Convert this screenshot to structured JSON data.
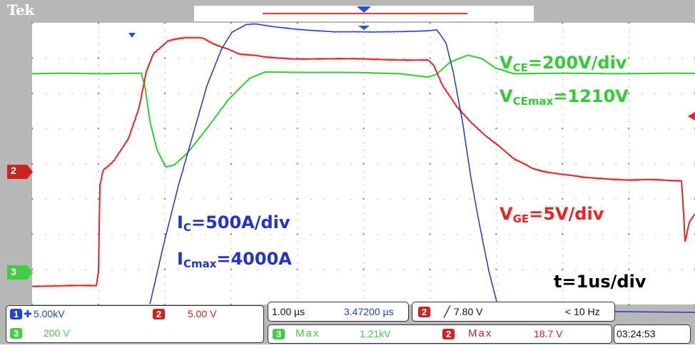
{
  "brand": "Tek",
  "labels": {
    "vce_main": "V",
    "vce_sub": "CE",
    "vce_val": "=200V/div",
    "vcemax_main": "V",
    "vcemax_sub": "CEmax",
    "vcemax_val": "=1210V",
    "vge_main": "V",
    "vge_sub": "GE",
    "vge_val": "=5V/div",
    "ic_main": "I",
    "ic_sub": "C",
    "ic_val": "=500A/div",
    "icmax_main": "I",
    "icmax_sub": "Cmax",
    "icmax_val": "=4000A",
    "time": "t=1us/div"
  },
  "markers": {
    "ch2": "2",
    "ch3": "3"
  },
  "status": {
    "ch1_num": "1",
    "ch1_scale": "5.00kV",
    "ch2_num": "2",
    "ch2_scale": "5.00 V",
    "ch3_num": "3",
    "ch3_scale": "200 V",
    "timebase": "1.00 µs",
    "position": "3.47200 µs",
    "trig_ch": "2",
    "trig_level": "7.80 V",
    "trig_freq": "< 10 Hz",
    "meas1_ch": "3",
    "meas1_label": "Max",
    "meas1_value": "1.21kV",
    "meas2_ch": "2",
    "meas2_label": "Max",
    "meas2_value": "18.7 V",
    "clock": "03:24:53"
  },
  "colors": {
    "ch1": "#2233dd",
    "ch2": "#ee2222",
    "ch3": "#33cc33",
    "grid": "#999999",
    "frame": "#b8b8b8"
  }
}
